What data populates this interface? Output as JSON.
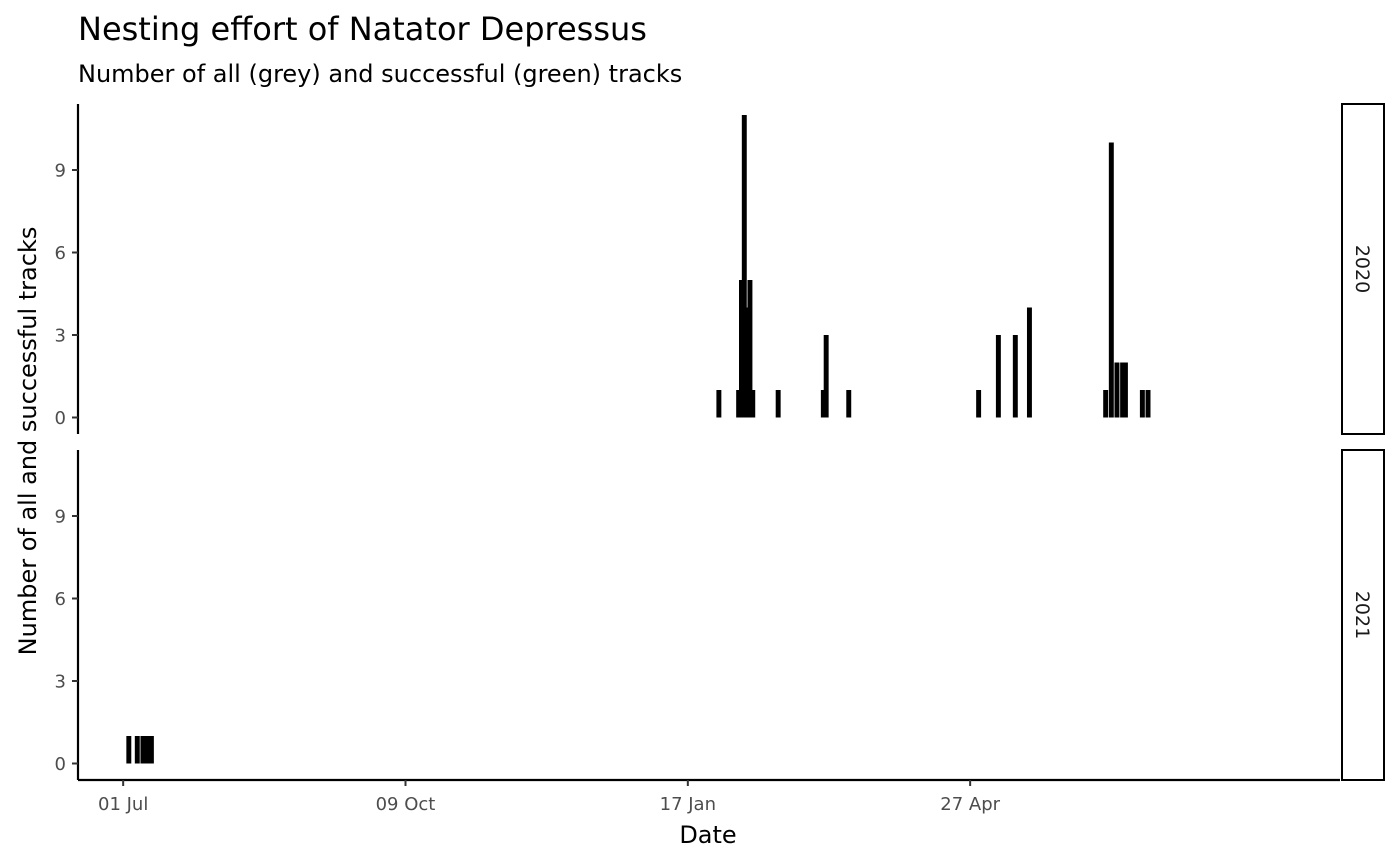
{
  "chart_data": {
    "type": "bar",
    "title": "Nesting effort of Natator Depressus",
    "subtitle": "Number of all (grey) and successful (green) tracks",
    "xlabel": "Date",
    "ylabel": "Number of all and successful tracks",
    "x_ticks": [
      {
        "date": "2020-07-01",
        "label": "01 Jul"
      },
      {
        "date": "2020-10-09",
        "label": "09 Oct"
      },
      {
        "date": "2021-01-17",
        "label": "17 Jan"
      },
      {
        "date": "2021-04-27",
        "label": "27 Apr"
      }
    ],
    "xlim": [
      "2020-06-15",
      "2021-09-05"
    ],
    "y_ticks": [
      0,
      3,
      6,
      9
    ],
    "ylim": [
      -0.6,
      11.4
    ],
    "bar_color": "#000000",
    "facets": [
      {
        "strip_label": "2020",
        "bars": [
          {
            "date": "2021-01-28",
            "value": 1
          },
          {
            "date": "2021-02-04",
            "value": 1
          },
          {
            "date": "2021-02-05",
            "value": 5
          },
          {
            "date": "2021-02-06",
            "value": 11
          },
          {
            "date": "2021-02-07",
            "value": 4
          },
          {
            "date": "2021-02-08",
            "value": 5
          },
          {
            "date": "2021-02-09",
            "value": 1
          },
          {
            "date": "2021-02-18",
            "value": 1
          },
          {
            "date": "2021-03-06",
            "value": 1
          },
          {
            "date": "2021-03-07",
            "value": 3
          },
          {
            "date": "2021-03-15",
            "value": 1
          },
          {
            "date": "2021-04-30",
            "value": 1
          },
          {
            "date": "2021-05-07",
            "value": 3
          },
          {
            "date": "2021-05-13",
            "value": 3
          },
          {
            "date": "2021-05-18",
            "value": 4
          },
          {
            "date": "2021-06-14",
            "value": 1
          },
          {
            "date": "2021-06-16",
            "value": 10
          },
          {
            "date": "2021-06-18",
            "value": 2
          },
          {
            "date": "2021-06-20",
            "value": 2
          },
          {
            "date": "2021-06-21",
            "value": 2
          },
          {
            "date": "2021-06-27",
            "value": 1
          },
          {
            "date": "2021-06-29",
            "value": 1
          }
        ]
      },
      {
        "strip_label": "2021",
        "bars": [
          {
            "date": "2020-07-03",
            "value": 1
          },
          {
            "date": "2020-07-06",
            "value": 1
          },
          {
            "date": "2020-07-08",
            "value": 1
          },
          {
            "date": "2020-07-09",
            "value": 1
          },
          {
            "date": "2020-07-10",
            "value": 1
          },
          {
            "date": "2020-07-11",
            "value": 1
          }
        ]
      }
    ]
  }
}
